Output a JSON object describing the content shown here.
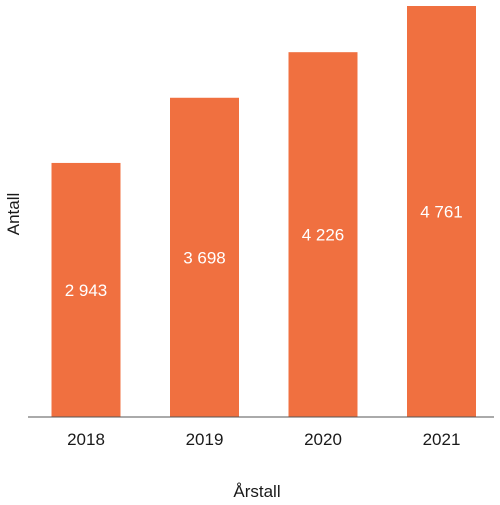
{
  "chart_data": {
    "type": "bar",
    "title": "",
    "xlabel": "Årstall",
    "ylabel": "Antall",
    "categories": [
      "2018",
      "2019",
      "2020",
      "2021"
    ],
    "values": [
      2943,
      3698,
      4226,
      4761
    ],
    "value_labels": [
      "2 943",
      "3 698",
      "4 226",
      "4 761"
    ],
    "ylim": [
      0,
      4761
    ],
    "grid": false,
    "legend": "none",
    "bar_color": "#f07040"
  }
}
